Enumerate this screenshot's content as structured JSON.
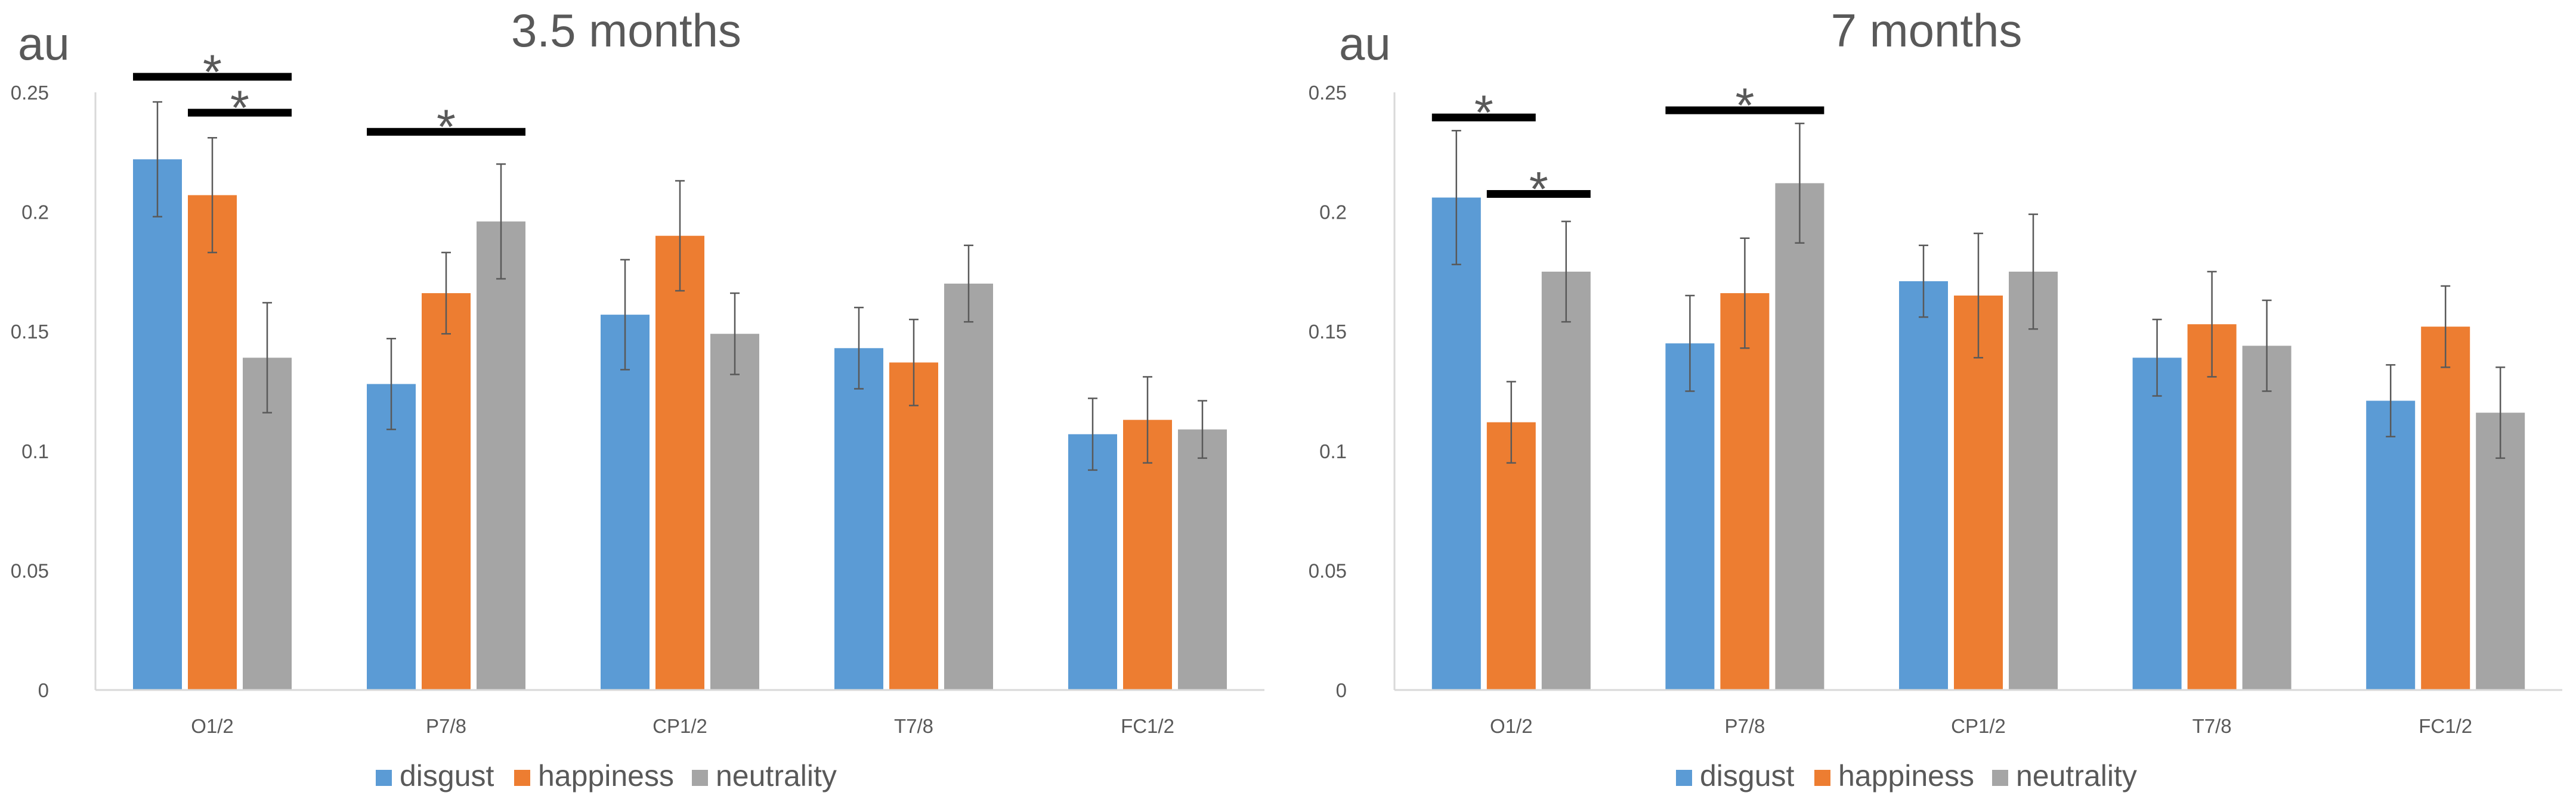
{
  "colors": {
    "disgust": "#5B9BD5",
    "happiness": "#ED7D31",
    "neutrality": "#A5A5A5",
    "axis": "#D9D9D9",
    "text": "#595959",
    "error_bar": "#595959",
    "significance": "#000000"
  },
  "chart_data": [
    {
      "type": "bar",
      "title": "3.5 months",
      "ylabel": "au",
      "xlabel": "",
      "ylim": [
        0,
        0.25
      ],
      "yticks": [
        0,
        0.05,
        0.1,
        0.15,
        0.2,
        0.25
      ],
      "ytick_labels": [
        "0",
        "0.05",
        "0.1",
        "0.15",
        "0.2",
        "0.25"
      ],
      "grid": false,
      "legend_position": "bottom",
      "categories": [
        "O1/2",
        "P7/8",
        "CP1/2",
        "T7/8",
        "FC1/2"
      ],
      "series": [
        {
          "name": "disgust",
          "values": [
            0.222,
            0.128,
            0.157,
            0.143,
            0.107
          ],
          "errors": [
            0.024,
            0.019,
            0.023,
            0.017,
            0.015
          ]
        },
        {
          "name": "happiness",
          "values": [
            0.207,
            0.166,
            0.19,
            0.137,
            0.113
          ],
          "errors": [
            0.024,
            0.017,
            0.023,
            0.018,
            0.018
          ]
        },
        {
          "name": "neutrality",
          "values": [
            0.139,
            0.196,
            0.149,
            0.17,
            0.109
          ],
          "errors": [
            0.023,
            0.024,
            0.017,
            0.016,
            0.012
          ]
        }
      ],
      "annotations": [
        {
          "text": "*",
          "category": 0,
          "from_series": 0,
          "to_series": 2,
          "level": 0.2565
        },
        {
          "text": "*",
          "category": 0,
          "from_series": 1,
          "to_series": 2,
          "level": 0.2415
        },
        {
          "text": "*",
          "category": 1,
          "from_series": 0,
          "to_series": 2,
          "level": 0.2335
        }
      ]
    },
    {
      "type": "bar",
      "title": "7 months",
      "ylabel": "au",
      "xlabel": "",
      "ylim": [
        0,
        0.25
      ],
      "yticks": [
        0,
        0.05,
        0.1,
        0.15,
        0.2,
        0.25
      ],
      "ytick_labels": [
        "0",
        "0.05",
        "0.1",
        "0.15",
        "0.2",
        "0.25"
      ],
      "grid": false,
      "legend_position": "bottom",
      "categories": [
        "O1/2",
        "P7/8",
        "CP1/2",
        "T7/8",
        "FC1/2"
      ],
      "series": [
        {
          "name": "disgust",
          "values": [
            0.206,
            0.145,
            0.171,
            0.139,
            0.121
          ],
          "errors": [
            0.028,
            0.02,
            0.015,
            0.016,
            0.015
          ]
        },
        {
          "name": "happiness",
          "values": [
            0.112,
            0.166,
            0.165,
            0.153,
            0.152
          ],
          "errors": [
            0.017,
            0.023,
            0.026,
            0.022,
            0.017
          ]
        },
        {
          "name": "neutrality",
          "values": [
            0.175,
            0.212,
            0.175,
            0.144,
            0.116
          ],
          "errors": [
            0.021,
            0.025,
            0.024,
            0.019,
            0.019
          ]
        }
      ],
      "annotations": [
        {
          "text": "*",
          "category": 0,
          "from_series": 0,
          "to_series": 1,
          "level": 0.2395
        },
        {
          "text": "*",
          "category": 0,
          "from_series": 1,
          "to_series": 2,
          "level": 0.2075
        },
        {
          "text": "*",
          "category": 1,
          "from_series": 0,
          "to_series": 2,
          "level": 0.2425
        }
      ]
    }
  ]
}
